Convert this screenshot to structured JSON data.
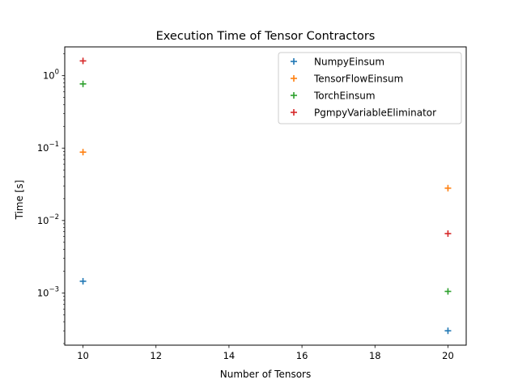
{
  "chart_data": {
    "type": "scatter",
    "title": "Execution Time of Tensor Contractors",
    "xlabel": "Number of Tensors",
    "ylabel": "Time [s]",
    "xlim": [
      9.5,
      20.5
    ],
    "ylim": [
      0.00019,
      2.5
    ],
    "yscale": "log",
    "grid": false,
    "legend_position": "top-right",
    "marker": "+",
    "x_ticks": [
      {
        "value": 10,
        "label": "10"
      },
      {
        "value": 12,
        "label": "12"
      },
      {
        "value": 14,
        "label": "14"
      },
      {
        "value": 16,
        "label": "16"
      },
      {
        "value": 18,
        "label": "18"
      },
      {
        "value": 20,
        "label": "20"
      }
    ],
    "y_ticks": [
      {
        "value": 0.001,
        "base": "10",
        "exp": "−3"
      },
      {
        "value": 0.01,
        "base": "10",
        "exp": "−2"
      },
      {
        "value": 0.1,
        "base": "10",
        "exp": "−1"
      },
      {
        "value": 1,
        "base": "10",
        "exp": "0"
      }
    ],
    "series": [
      {
        "name": "NumpyEinsum",
        "color": "#1f77b4",
        "points": [
          {
            "x": 10,
            "y": 0.00145
          },
          {
            "x": 20,
            "y": 0.0003
          }
        ]
      },
      {
        "name": "TensorFlowEinsum",
        "color": "#ff7f0e",
        "points": [
          {
            "x": 10,
            "y": 0.088
          },
          {
            "x": 20,
            "y": 0.028
          }
        ]
      },
      {
        "name": "TorchEinsum",
        "color": "#2ca02c",
        "points": [
          {
            "x": 10,
            "y": 0.77
          },
          {
            "x": 20,
            "y": 0.00105
          }
        ]
      },
      {
        "name": "PgmpyVariableEliminator",
        "color": "#d62728",
        "points": [
          {
            "x": 10,
            "y": 1.6
          },
          {
            "x": 20,
            "y": 0.0066
          }
        ]
      }
    ]
  }
}
